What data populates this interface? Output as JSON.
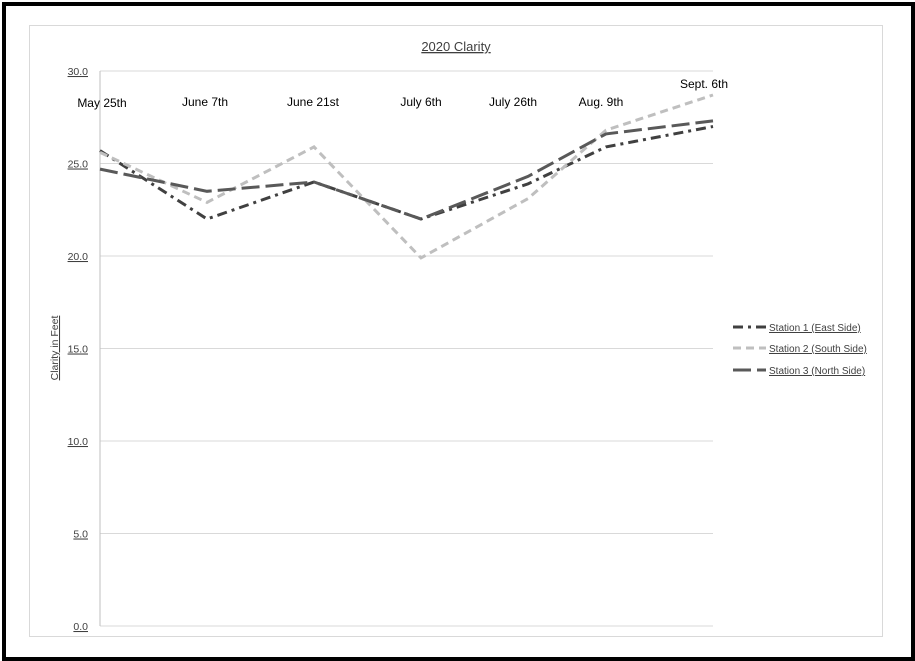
{
  "chart_data": {
    "type": "line",
    "title": "2020 Clarity",
    "xlabel": "",
    "ylabel": "Clarity in Feet",
    "ylim": [
      0,
      30
    ],
    "yticks": [
      "0.0",
      "5.0",
      "10.0",
      "15.0",
      "20.0",
      "25.0",
      "30.0"
    ],
    "grid": true,
    "legend_position": "right",
    "categories": [
      "May 25th",
      "June 7th",
      "June 21st",
      "July 6th",
      "July 26th",
      "Aug. 9th",
      "Sept. 6th"
    ],
    "series": [
      {
        "name": "Station 1 (East Side)",
        "values": [
          25.7,
          22.0,
          24.0,
          22.0,
          23.9,
          25.9,
          27.0
        ],
        "color": "#404040",
        "dash": "dashdot"
      },
      {
        "name": "Station 2 (South Side)",
        "values": [
          25.6,
          22.9,
          25.9,
          19.9,
          23.1,
          26.8,
          28.7
        ],
        "color": "#bfbfbf",
        "dash": "dash"
      },
      {
        "name": "Station 3 (North Side)",
        "values": [
          24.7,
          23.5,
          24.0,
          22.0,
          24.3,
          26.6,
          27.3
        ],
        "color": "#595959",
        "dash": "longdash"
      }
    ]
  }
}
